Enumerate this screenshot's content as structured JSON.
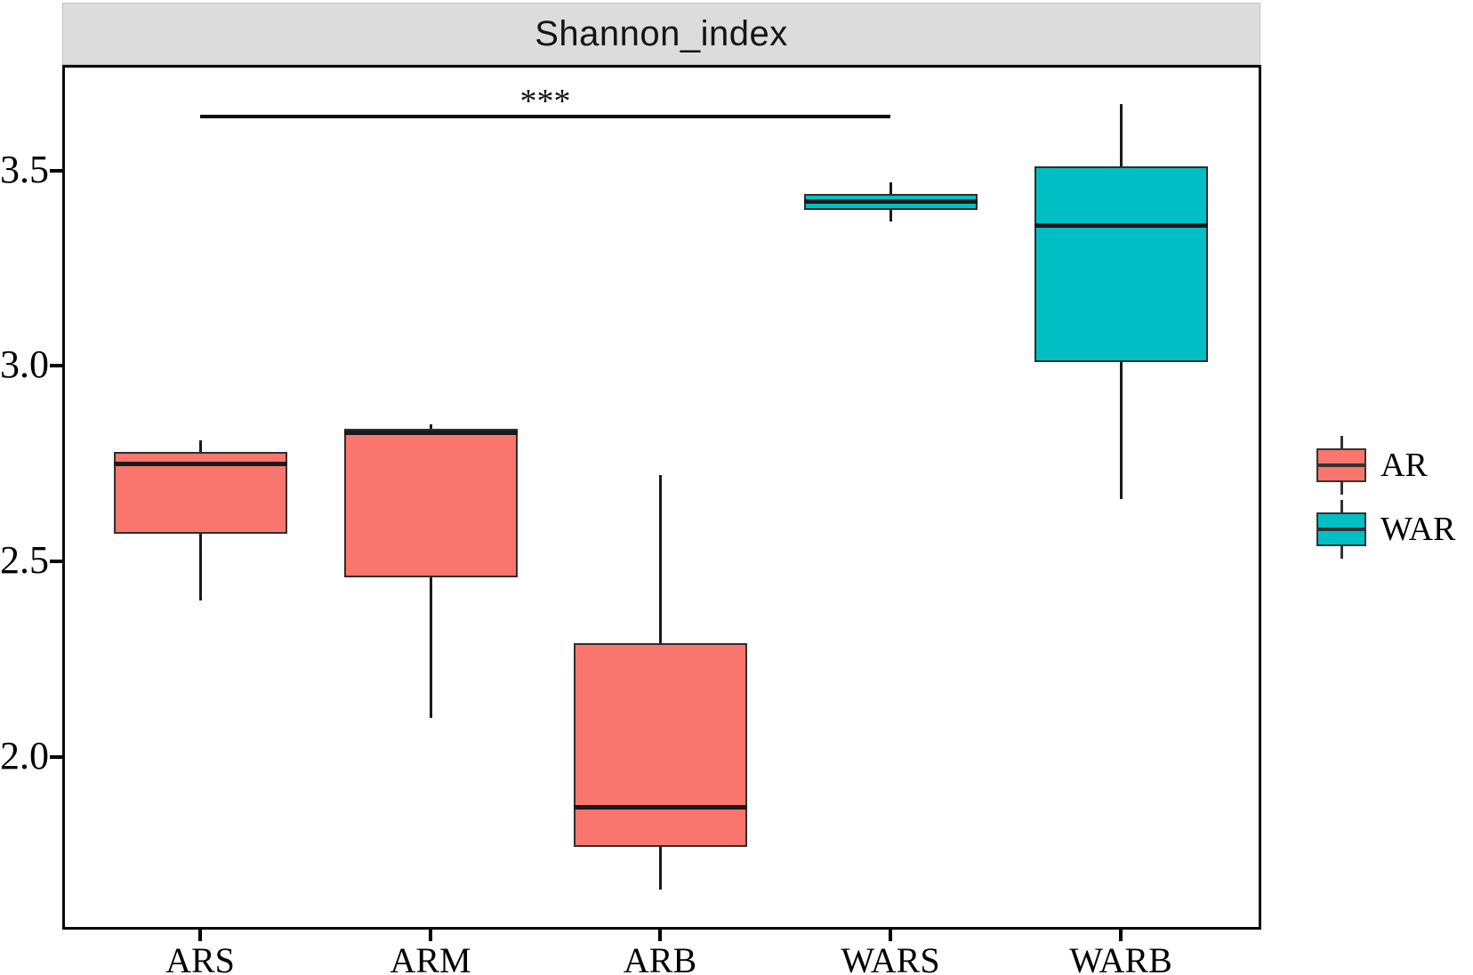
{
  "chart_data": {
    "type": "boxplot",
    "title": "Shannon_index",
    "xlabel": "",
    "ylabel": "",
    "categories": [
      "ARS",
      "ARM",
      "ARB",
      "WARS",
      "WARB"
    ],
    "groups": [
      {
        "name": "AR",
        "color": "#F8766D",
        "categories": [
          "ARS",
          "ARM",
          "ARB"
        ]
      },
      {
        "name": "WAR",
        "color": "#00BFC4",
        "categories": [
          "WARS",
          "WARB"
        ]
      }
    ],
    "boxes": [
      {
        "category": "ARS",
        "group": "AR",
        "min": 2.4,
        "q1": 2.57,
        "median": 2.75,
        "q3": 2.78,
        "max": 2.81
      },
      {
        "category": "ARM",
        "group": "AR",
        "min": 2.1,
        "q1": 2.46,
        "median": 2.83,
        "q3": 2.84,
        "max": 2.85
      },
      {
        "category": "ARB",
        "group": "AR",
        "min": 1.66,
        "q1": 1.77,
        "median": 1.87,
        "q3": 2.29,
        "max": 2.72
      },
      {
        "category": "WARS",
        "group": "WAR",
        "min": 3.37,
        "q1": 3.4,
        "median": 3.42,
        "q3": 3.44,
        "max": 3.47
      },
      {
        "category": "WARB",
        "group": "WAR",
        "min": 2.66,
        "q1": 3.01,
        "median": 3.36,
        "q3": 3.51,
        "max": 3.67
      }
    ],
    "yticks": [
      {
        "label": "2.0",
        "value": 2.0
      },
      {
        "label": "2.5",
        "value": 2.5
      },
      {
        "label": "3.0",
        "value": 3.0
      },
      {
        "label": "3.5",
        "value": 3.5
      }
    ],
    "ylim": [
      1.56,
      3.77
    ],
    "grid": "off",
    "legend_position": "right",
    "strip_fill": "#DCDCDC",
    "significance": {
      "from": "ARS",
      "to": "WARS",
      "label": "***"
    },
    "legend": {
      "entries": [
        {
          "label": "AR",
          "color": "#F8766D"
        },
        {
          "label": "WAR",
          "color": "#00BFC4"
        }
      ]
    }
  }
}
